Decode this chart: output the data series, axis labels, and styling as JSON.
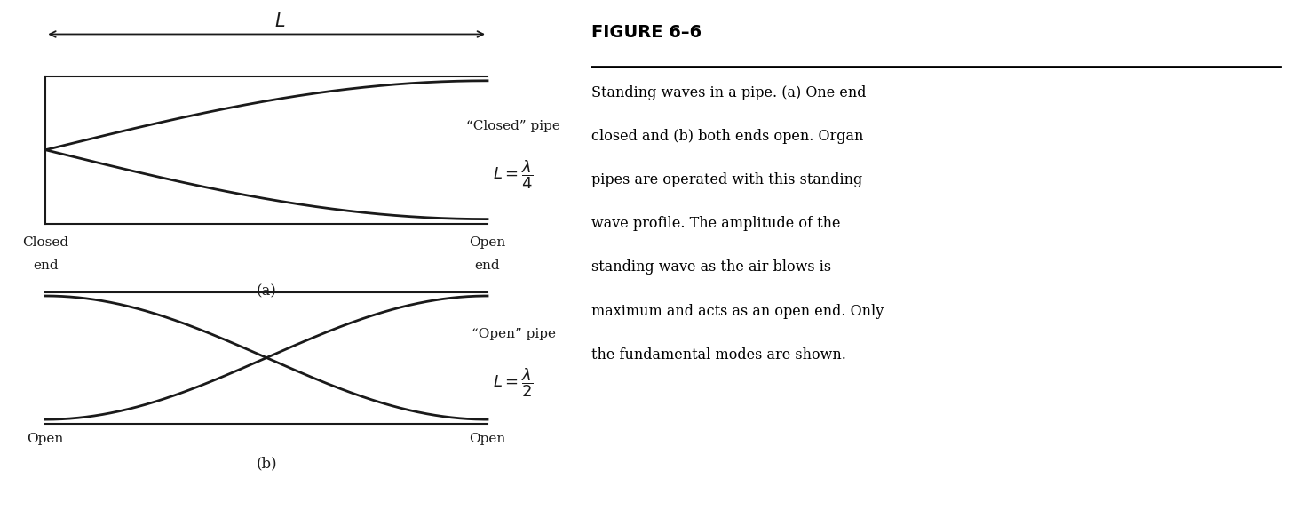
{
  "fig_width": 14.64,
  "fig_height": 5.92,
  "bg_color": "#ffffff",
  "pipe_color": "#1a1a1a",
  "wave_color": "#1a1a1a",
  "pipe_lw": 1.5,
  "wave_lw": 2.0,
  "panel_a_label": "(a)",
  "panel_b_label": "(b)",
  "closed_pipe_annotation": "“Closed” pipe",
  "closed_pipe_formula": "$L = \\dfrac{\\lambda}{4}$",
  "open_pipe_annotation": "“Open” pipe",
  "open_pipe_formula": "$L = \\dfrac{\\lambda}{2}$",
  "figure_title": "FIGURE 6–6",
  "caption_line1": "Standing waves in a pipe. (a) One end",
  "caption_line2": "closed and (b) both ends open. Organ",
  "caption_line3": "pipes are operated with this standing",
  "caption_line4": "wave profile. The amplitude of the",
  "caption_line5": "standing wave as the air blows is",
  "caption_line6": "maximum and acts as an open end. Only",
  "caption_line7": "the fundamental modes are shown."
}
